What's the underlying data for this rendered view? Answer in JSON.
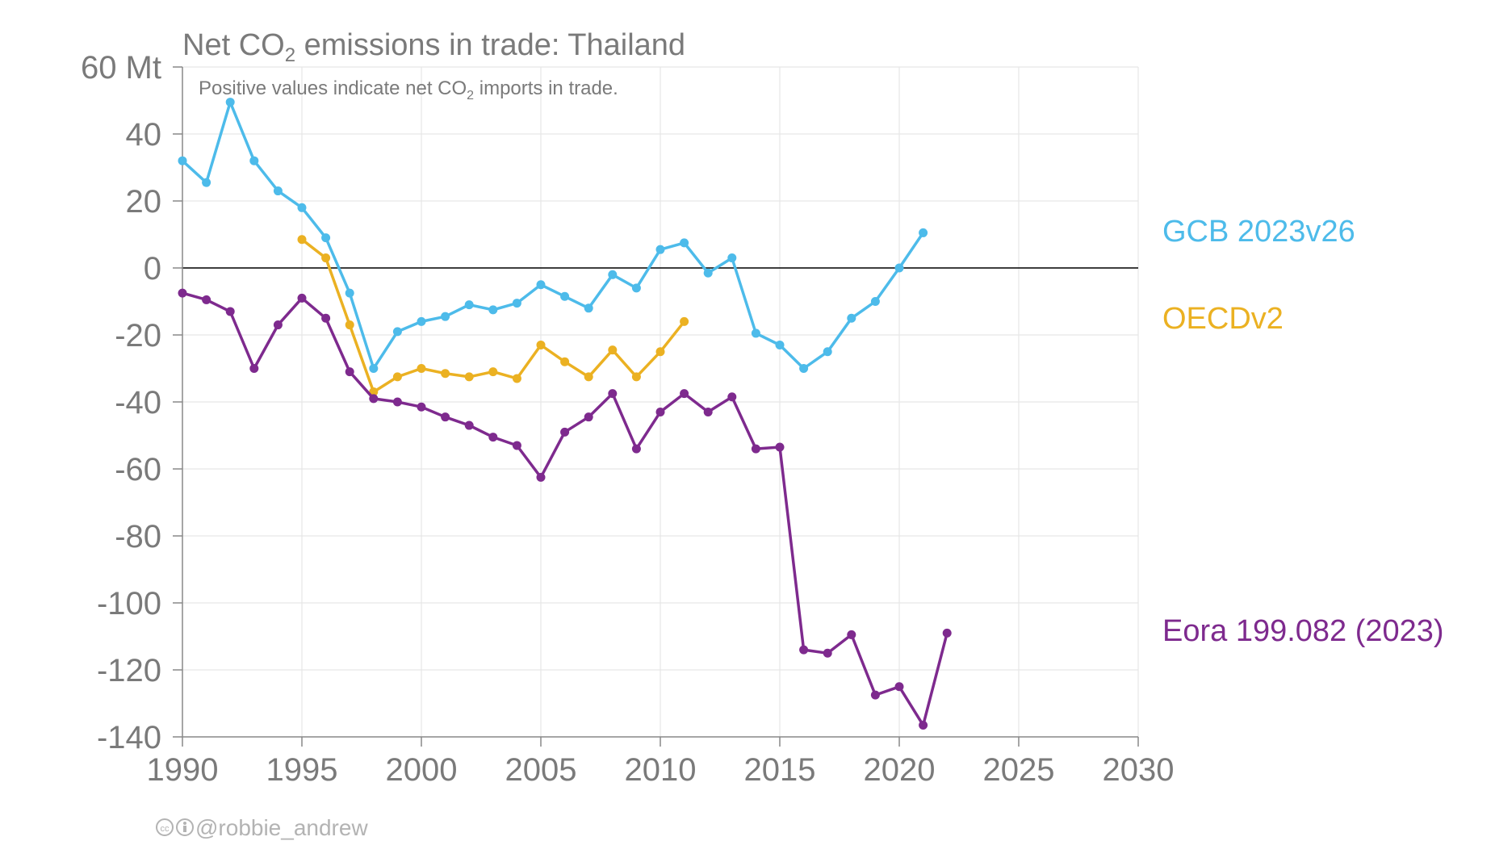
{
  "chart_data": {
    "type": "line",
    "title": {
      "pre": "Net CO",
      "sub": "2",
      "post": " emissions in trade: Thailand"
    },
    "subtitle": {
      "pre": "Positive values indicate net CO",
      "sub": "2",
      "post": " imports in trade."
    },
    "ylim": [
      -140,
      60
    ],
    "xlim": [
      1990,
      2030
    ],
    "yticks": [
      60,
      40,
      20,
      0,
      -20,
      -40,
      -60,
      -80,
      -100,
      -120,
      -140
    ],
    "ytick_labels": [
      "60 Mt",
      "40",
      "20",
      "0",
      "-20",
      "-40",
      "-60",
      "-80",
      "-100",
      "-120",
      "-140"
    ],
    "xticks": [
      1990,
      1995,
      2000,
      2005,
      2010,
      2015,
      2020,
      2025,
      2030
    ],
    "xtick_labels": [
      "1990",
      "1995",
      "2000",
      "2005",
      "2010",
      "2015",
      "2020",
      "2025",
      "2030"
    ],
    "grid": true,
    "series": [
      {
        "name": "GCB 2023v26",
        "color": "#4dbbea",
        "x": [
          1990,
          1991,
          1992,
          1993,
          1994,
          1995,
          1996,
          1997,
          1998,
          1999,
          2000,
          2001,
          2002,
          2003,
          2004,
          2005,
          2006,
          2007,
          2008,
          2009,
          2010,
          2011,
          2012,
          2013,
          2014,
          2015,
          2016,
          2017,
          2018,
          2019,
          2020,
          2021
        ],
        "y": [
          32,
          25.5,
          49.5,
          32,
          23,
          18,
          9,
          -7.5,
          -30,
          -19,
          -16,
          -14.5,
          -11,
          -12.5,
          -10.5,
          -5,
          -8.5,
          -12,
          -2,
          -6,
          5.5,
          7.5,
          -1.5,
          3,
          -19.5,
          -23,
          -30,
          -25,
          -15,
          -10,
          0,
          10.5
        ]
      },
      {
        "name": "OECDv2",
        "color": "#ebb122",
        "x": [
          1995,
          1996,
          1997,
          1998,
          1999,
          2000,
          2001,
          2002,
          2003,
          2004,
          2005,
          2006,
          2007,
          2008,
          2009,
          2010,
          2011
        ],
        "y": [
          8.5,
          3,
          -17,
          -37,
          -32.5,
          -30,
          -31.5,
          -32.5,
          -31,
          -33,
          -23,
          -28,
          -32.5,
          -24.5,
          -32.5,
          -25,
          -16
        ]
      },
      {
        "name": "Eora 199.082 (2023)",
        "color": "#7e2a8e",
        "x": [
          1990,
          1991,
          1992,
          1993,
          1994,
          1995,
          1996,
          1997,
          1998,
          1999,
          2000,
          2001,
          2002,
          2003,
          2004,
          2005,
          2006,
          2007,
          2008,
          2009,
          2010,
          2011,
          2012,
          2013,
          2014,
          2015,
          2016,
          2017,
          2018,
          2019,
          2020,
          2021,
          2022
        ],
        "y": [
          -7.5,
          -9.5,
          -13,
          -30,
          -17,
          -9,
          -15,
          -31,
          -39,
          -40,
          -41.5,
          -44.5,
          -47,
          -50.5,
          -53,
          -62.5,
          -49,
          -44.5,
          -37.5,
          -54,
          -43,
          -37.5,
          -43,
          -38.5,
          -54,
          -53.5,
          -114,
          -115,
          -109.5,
          -127.5,
          -125,
          -136.5,
          -109
        ]
      }
    ]
  },
  "credit": {
    "handle": "@robbie_andrew"
  }
}
